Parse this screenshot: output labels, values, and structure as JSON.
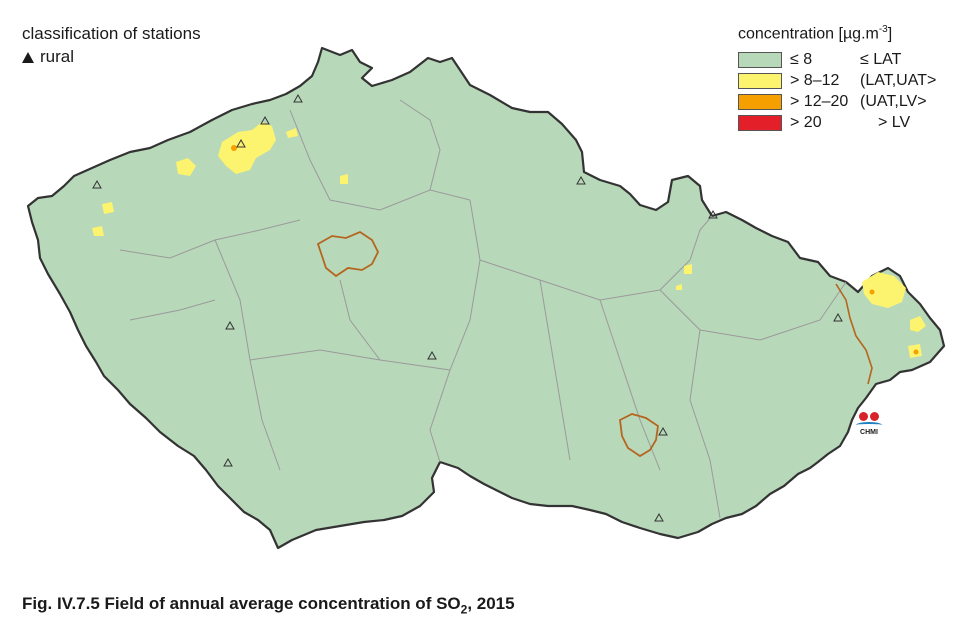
{
  "stations": {
    "title": "classification of stations",
    "rural_label": "rural"
  },
  "legend": {
    "title": "concentration [µg.m",
    "title_sup": "-3",
    "title_end": "]",
    "items": [
      {
        "value": "≤ 8",
        "class": "≤ LAT",
        "color": "#b8d8ba"
      },
      {
        "value": "> 8–12",
        "class": "(LAT,UAT>",
        "color": "#fcf36e"
      },
      {
        "value": "> 12–20",
        "class": "(UAT,LV>",
        "color": "#f5a000"
      },
      {
        "value": "> 20",
        "class": "> LV",
        "color": "#e3202a"
      }
    ]
  },
  "logo": {
    "text": "CHMI"
  },
  "caption": {
    "prefix": "Fig. IV.7.5  Field of annual average concentration of SO",
    "sub": "2",
    "suffix": ", 2015"
  },
  "colors": {
    "country_fill": "#b8d8ba",
    "border": "#333333",
    "region_lines": "#999999",
    "city_outline": "#b5651d"
  }
}
